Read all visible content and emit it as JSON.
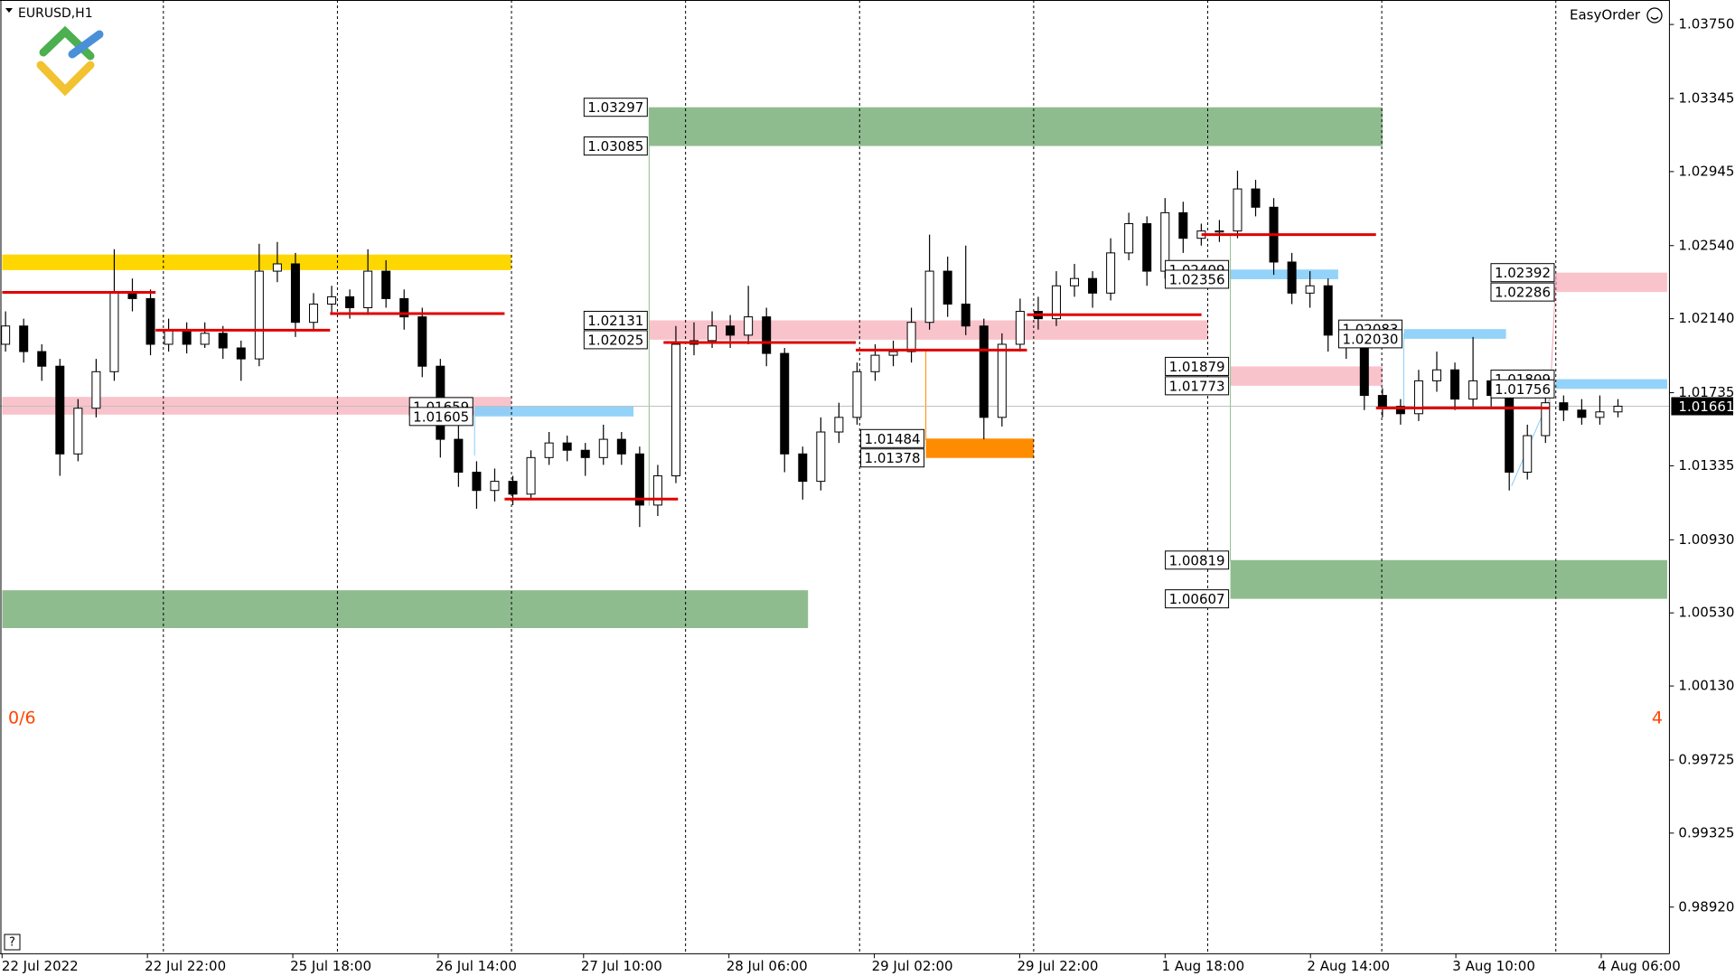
{
  "chart_data": {
    "type": "candlestick",
    "title": "EURUSD,H1",
    "panel": "EasyOrder",
    "counter_left": "0/6",
    "counter_right": "4",
    "help": "?",
    "ylim": [
      0.98665,
      1.03884
    ],
    "yticks": [
      {
        "value": 1.0375,
        "label": "1.03750"
      },
      1.03345,
      1.02945,
      {
        "value": 1.0254,
        "label": "1.02540"
      },
      {
        "value": 1.0214,
        "label": "1.02140"
      },
      1.01735,
      1.01335,
      {
        "value": 1.0093,
        "label": "1.00930"
      },
      {
        "value": 1.0053,
        "label": "1.00530"
      },
      {
        "value": 1.0013,
        "label": "1.00130"
      },
      0.99725,
      0.99325,
      {
        "value": 0.9892,
        "label": "0.98920"
      }
    ],
    "time_labels": [
      "22 Jul 2022",
      "22 Jul 22:00",
      "25 Jul 18:00",
      "26 Jul 14:00",
      "27 Jul 10:00",
      "28 Jul 06:00",
      "29 Jul 02:00",
      "29 Jul 22:00",
      "1 Aug 18:00",
      "2 Aug 14:00",
      "3 Aug 10:00",
      "4 Aug 06:00"
    ],
    "period_separators": true,
    "candle_up_color": "#ffffff",
    "candle_down_color": "#000000",
    "candles": [
      [
        1.02,
        1.0218,
        1.0196,
        1.021
      ],
      [
        1.021,
        1.0214,
        1.019,
        1.0196
      ],
      [
        1.0196,
        1.02,
        1.018,
        1.0188
      ],
      [
        1.0188,
        1.0192,
        1.0128,
        1.014
      ],
      [
        1.014,
        1.017,
        1.0136,
        1.0165
      ],
      [
        1.0165,
        1.0192,
        1.016,
        1.0185
      ],
      [
        1.0185,
        1.0252,
        1.018,
        1.0228
      ],
      [
        1.0228,
        1.0236,
        1.0218,
        1.0225
      ],
      [
        1.0225,
        1.023,
        1.0194,
        1.02
      ],
      [
        1.02,
        1.0214,
        1.0196,
        1.0208
      ],
      [
        1.0208,
        1.0212,
        1.0195,
        1.02
      ],
      [
        1.02,
        1.0212,
        1.0198,
        1.0206
      ],
      [
        1.0206,
        1.021,
        1.0192,
        1.0198
      ],
      [
        1.0198,
        1.0202,
        1.018,
        1.0192
      ],
      [
        1.0192,
        1.0255,
        1.0188,
        1.024
      ],
      [
        1.024,
        1.0256,
        1.0234,
        1.0244
      ],
      [
        1.0244,
        1.025,
        1.0204,
        1.0212
      ],
      [
        1.0212,
        1.0228,
        1.0208,
        1.0222
      ],
      [
        1.0222,
        1.0232,
        1.0216,
        1.0226
      ],
      [
        1.0226,
        1.023,
        1.0214,
        1.022
      ],
      [
        1.022,
        1.0252,
        1.0216,
        1.024
      ],
      [
        1.024,
        1.0246,
        1.022,
        1.0225
      ],
      [
        1.0225,
        1.023,
        1.0208,
        1.0215
      ],
      [
        1.0215,
        1.022,
        1.0182,
        1.0188
      ],
      [
        1.0188,
        1.0192,
        1.0138,
        1.0148
      ],
      [
        1.0148,
        1.0156,
        1.0122,
        1.013
      ],
      [
        1.013,
        1.0136,
        1.011,
        1.012
      ],
      [
        1.012,
        1.0132,
        1.0114,
        1.0125
      ],
      [
        1.0125,
        1.0128,
        1.0112,
        1.0118
      ],
      [
        1.0118,
        1.0142,
        1.0115,
        1.0138
      ],
      [
        1.0138,
        1.0152,
        1.0134,
        1.0146
      ],
      [
        1.0146,
        1.015,
        1.0136,
        1.0142
      ],
      [
        1.0142,
        1.0146,
        1.0128,
        1.0138
      ],
      [
        1.0138,
        1.0156,
        1.0134,
        1.0148
      ],
      [
        1.0148,
        1.0152,
        1.0134,
        1.014
      ],
      [
        1.014,
        1.0144,
        1.01,
        1.0112
      ],
      [
        1.0112,
        1.0134,
        1.0106,
        1.0128
      ],
      [
        1.0128,
        1.021,
        1.0124,
        1.02
      ],
      [
        1.02,
        1.0212,
        1.0194,
        1.0202
      ],
      [
        1.0202,
        1.0218,
        1.0198,
        1.021
      ],
      [
        1.021,
        1.0216,
        1.0198,
        1.0205
      ],
      [
        1.0205,
        1.0232,
        1.02,
        1.0215
      ],
      [
        1.0215,
        1.022,
        1.0188,
        1.0195
      ],
      [
        1.0195,
        1.0198,
        1.013,
        1.014
      ],
      [
        1.014,
        1.0144,
        1.0115,
        1.0125
      ],
      [
        1.0125,
        1.016,
        1.012,
        1.0152
      ],
      [
        1.0152,
        1.0168,
        1.0146,
        1.016
      ],
      [
        1.016,
        1.019,
        1.0156,
        1.0185
      ],
      [
        1.0185,
        1.02,
        1.018,
        1.0194
      ],
      [
        1.0194,
        1.0202,
        1.0188,
        1.0196
      ],
      [
        1.0196,
        1.022,
        1.019,
        1.0212
      ],
      [
        1.0212,
        1.026,
        1.0208,
        1.024
      ],
      [
        1.024,
        1.0248,
        1.0215,
        1.0222
      ],
      [
        1.0222,
        1.0254,
        1.0205,
        1.021
      ],
      [
        1.021,
        1.0214,
        1.0148,
        1.016
      ],
      [
        1.016,
        1.0206,
        1.0155,
        1.02
      ],
      [
        1.02,
        1.0225,
        1.0196,
        1.0218
      ],
      [
        1.0218,
        1.0226,
        1.0208,
        1.0214
      ],
      [
        1.0214,
        1.024,
        1.021,
        1.0232
      ],
      [
        1.0232,
        1.0244,
        1.0226,
        1.0236
      ],
      [
        1.0236,
        1.024,
        1.022,
        1.0228
      ],
      [
        1.0228,
        1.0258,
        1.0224,
        1.025
      ],
      [
        1.025,
        1.0272,
        1.0246,
        1.0266
      ],
      [
        1.0266,
        1.027,
        1.0232,
        1.024
      ],
      [
        1.024,
        1.028,
        1.0236,
        1.0272
      ],
      [
        1.0272,
        1.0278,
        1.025,
        1.0258
      ],
      [
        1.0258,
        1.0266,
        1.0254,
        1.0262
      ],
      [
        1.0262,
        1.0268,
        1.0256,
        1.0262
      ],
      [
        1.0262,
        1.0295,
        1.0258,
        1.0285
      ],
      [
        1.0285,
        1.029,
        1.027,
        1.0275
      ],
      [
        1.0275,
        1.028,
        1.0238,
        1.0245
      ],
      [
        1.0245,
        1.025,
        1.0222,
        1.0228
      ],
      [
        1.0228,
        1.024,
        1.022,
        1.0232
      ],
      [
        1.0232,
        1.0236,
        1.0196,
        1.0205
      ],
      [
        1.0205,
        1.021,
        1.0192,
        1.02
      ],
      [
        1.02,
        1.0204,
        1.0164,
        1.0172
      ],
      [
        1.0172,
        1.0176,
        1.016,
        1.0166
      ],
      [
        1.0166,
        1.017,
        1.0156,
        1.0162
      ],
      [
        1.0162,
        1.0186,
        1.0158,
        1.018
      ],
      [
        1.018,
        1.0196,
        1.0174,
        1.0186
      ],
      [
        1.0186,
        1.019,
        1.0164,
        1.017
      ],
      [
        1.017,
        1.0204,
        1.0166,
        1.018
      ],
      [
        1.018,
        1.0186,
        1.0166,
        1.0172
      ],
      [
        1.0172,
        1.0176,
        1.012,
        1.013
      ],
      [
        1.013,
        1.0156,
        1.0126,
        1.015
      ],
      [
        1.015,
        1.0176,
        1.0146,
        1.0168
      ],
      [
        1.0168,
        1.0172,
        1.0158,
        1.0164
      ],
      [
        1.0164,
        1.017,
        1.0156,
        1.016
      ],
      [
        1.016,
        1.0172,
        1.0156,
        1.0163
      ],
      [
        1.0163,
        1.017,
        1.016,
        1.01661
      ]
    ],
    "last_price": 1.01661,
    "zones": [
      {
        "color": "#ffd700",
        "top": 1.02491,
        "bottom": 1.02406,
        "show_labels": false
      },
      {
        "color": "#f9c3cc",
        "top": 1.01712,
        "bottom": 1.01615,
        "show_labels": false
      },
      {
        "color": "#87cefa",
        "top": 1.01659,
        "bottom": 1.01605,
        "show_labels": true
      },
      {
        "color": "#8fbc8f",
        "top": 1.03297,
        "bottom": 1.03085,
        "show_labels": true
      },
      {
        "color": "#8fbc8f",
        "top": 1.00654,
        "bottom": 1.00447,
        "show_labels": false
      },
      {
        "color": "#f9c3cc",
        "top": 1.02131,
        "bottom": 1.02025,
        "show_labels": true
      },
      {
        "color": "#ff8c00",
        "top": 1.01484,
        "bottom": 1.01378,
        "show_labels": true
      },
      {
        "color": "#87cefa",
        "top": 1.02409,
        "bottom": 1.02356,
        "show_labels": true
      },
      {
        "color": "#f9c3cc",
        "top": 1.01879,
        "bottom": 1.01773,
        "show_labels": true
      },
      {
        "color": "#8fbc8f",
        "top": 1.00819,
        "bottom": 1.00607,
        "show_labels": true
      },
      {
        "color": "#87cefa",
        "top": 1.02083,
        "bottom": {
          "value": 1.0203,
          "label": "1.02030"
        },
        "show_labels": true
      },
      {
        "color": "#f9c3cc",
        "top": 1.02392,
        "bottom": 1.02286,
        "show_labels": true
      },
      {
        "color": "#87cefa",
        "top": 1.01809,
        "bottom": 1.01756,
        "show_labels": true
      }
    ],
    "levels": {
      "color": "#e00000",
      "values": [
        1.02284,
        1.02077,
        1.02168,
        1.01153,
        1.0201,
        1.01968,
        1.02162,
        1.026,
        1.01651
      ]
    }
  }
}
